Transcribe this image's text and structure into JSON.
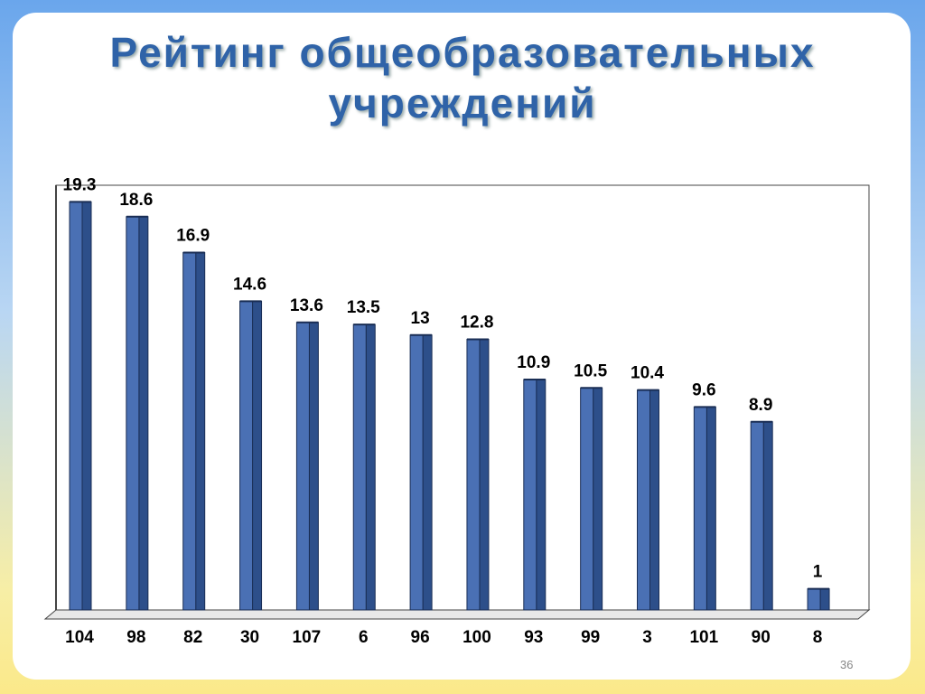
{
  "chart_data": {
    "type": "bar",
    "title": "Рейтинг общеобразовательных учреждений",
    "categories": [
      "104",
      "98",
      "82",
      "30",
      "107",
      "6",
      "96",
      "100",
      "93",
      "99",
      "3",
      "101",
      "90",
      "8"
    ],
    "values": [
      19.3,
      18.6,
      16.9,
      14.6,
      13.6,
      13.5,
      13,
      12.8,
      10.9,
      10.5,
      10.4,
      9.6,
      8.9,
      1
    ],
    "color": "#4a70b4",
    "ylim": [
      0,
      20
    ]
  },
  "slide_number": "36"
}
